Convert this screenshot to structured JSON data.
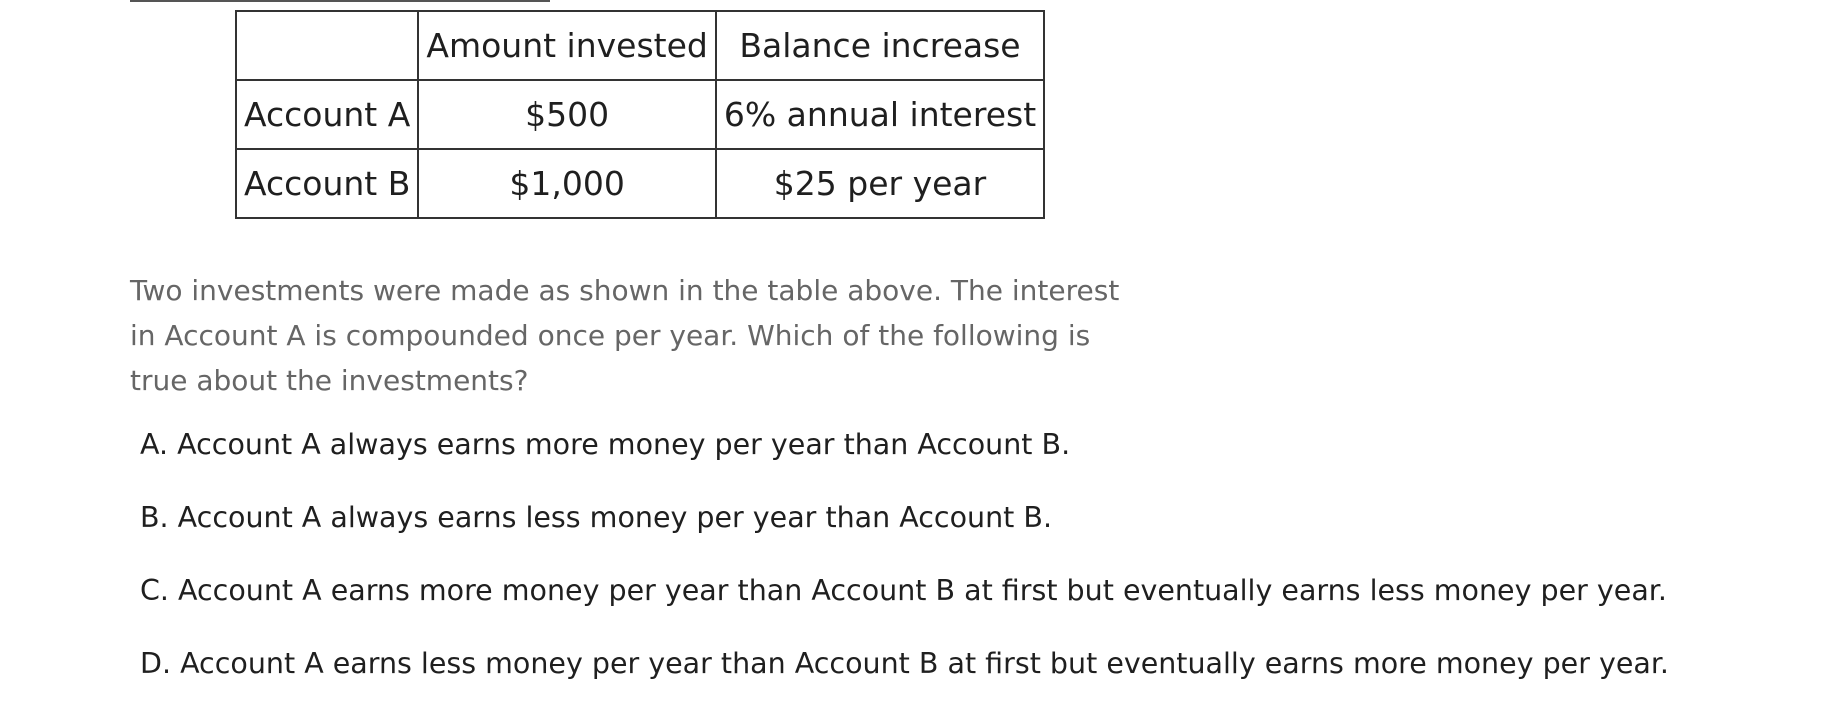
{
  "table": {
    "headers": [
      "",
      "Amount invested",
      "Balance increase"
    ],
    "rows": [
      {
        "account": "Account A",
        "amount": "$500",
        "increase": "6% annual interest"
      },
      {
        "account": "Account B",
        "amount": "$1,000",
        "increase": "$25 per year"
      }
    ]
  },
  "question": {
    "text": "Two investments were made as shown in the table above. The interest in Account A is compounded once per year. Which of the following is true about the investments?"
  },
  "choices": [
    {
      "label": "A. Account A always earns more money per year than Account B."
    },
    {
      "label": "B. Account A always earns less money per year than Account B."
    },
    {
      "label": "C. Account A earns more money per year than Account B at first but eventually earns less money per year."
    },
    {
      "label": "D. Account A earns less money per year than Account B at first but eventually earns more money per year."
    }
  ]
}
